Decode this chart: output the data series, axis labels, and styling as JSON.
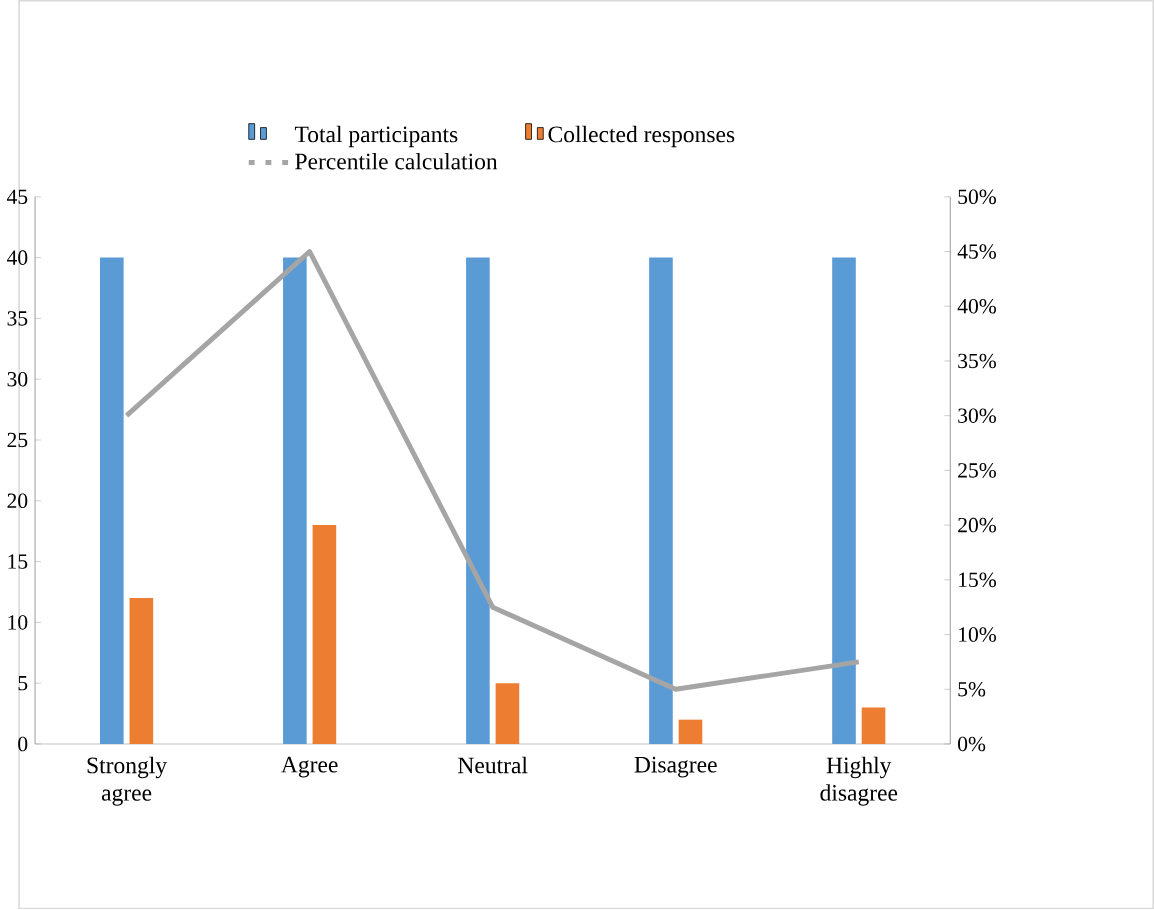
{
  "chart_data": {
    "type": "bar",
    "categories": [
      "Strongly agree",
      "Agree",
      "Neutral",
      "Disagree",
      "Highly disagree"
    ],
    "series": [
      {
        "name": "Total participants",
        "color": "#5b9bd5",
        "values": [
          40,
          40,
          40,
          40,
          40
        ]
      },
      {
        "name": "Collected responses",
        "color": "#ed7d31",
        "values": [
          12,
          18,
          5,
          2,
          3
        ]
      },
      {
        "name": "Percentile calculation",
        "color": "#a5a5a5",
        "type": "line",
        "axis": "y2",
        "marker": "none",
        "values": [
          30,
          45,
          12.5,
          5,
          7.5
        ]
      }
    ],
    "ylim": [
      0,
      45
    ],
    "yticks": [
      0,
      5,
      10,
      15,
      20,
      25,
      30,
      35,
      40,
      45
    ],
    "y2lim": [
      0,
      50
    ],
    "y2ticks": [
      {
        "value": 0,
        "label": "0%"
      },
      {
        "value": 5,
        "label": "5%"
      },
      {
        "value": 10,
        "label": "10%"
      },
      {
        "value": 15,
        "label": "15%"
      },
      {
        "value": 20,
        "label": "20%"
      },
      {
        "value": 25,
        "label": "25%"
      },
      {
        "value": 30,
        "label": "30%"
      },
      {
        "value": 35,
        "label": "35%"
      },
      {
        "value": 40,
        "label": "40%"
      },
      {
        "value": 45,
        "label": "45%"
      },
      {
        "value": 50,
        "label": "50%"
      }
    ],
    "legend": "top"
  }
}
